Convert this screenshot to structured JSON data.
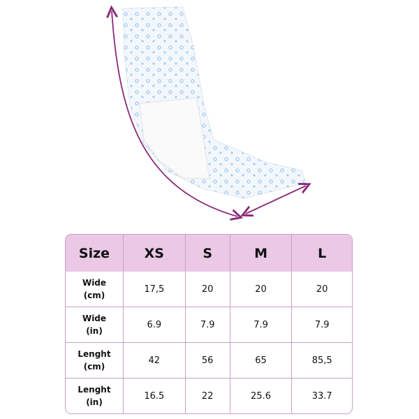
{
  "table": {
    "header": [
      "Size",
      "XS",
      "S",
      "M",
      "L"
    ],
    "rows": [
      [
        [
          "Wide",
          "(cm)"
        ],
        "17,5",
        "20",
        "20",
        "20"
      ],
      [
        [
          "Wide",
          "(in)"
        ],
        "6.9",
        "7.9",
        "7.9",
        "7.9"
      ],
      [
        [
          "Lenght",
          "(cm)"
        ],
        "42",
        "56",
        "65",
        "85,5"
      ],
      [
        [
          "Lenght",
          "(in)"
        ],
        "16.5",
        "22",
        "25.6",
        "33.7"
      ]
    ]
  }
}
